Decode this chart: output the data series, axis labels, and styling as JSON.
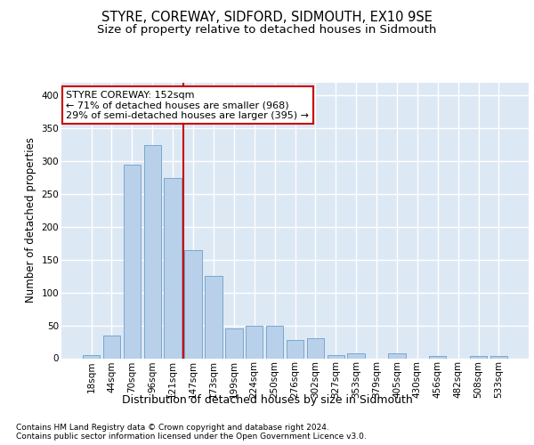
{
  "title1": "STYRE, COREWAY, SIDFORD, SIDMOUTH, EX10 9SE",
  "title2": "Size of property relative to detached houses in Sidmouth",
  "xlabel": "Distribution of detached houses by size in Sidmouth",
  "ylabel": "Number of detached properties",
  "categories": [
    "18sqm",
    "44sqm",
    "70sqm",
    "96sqm",
    "121sqm",
    "147sqm",
    "173sqm",
    "199sqm",
    "224sqm",
    "250sqm",
    "276sqm",
    "302sqm",
    "327sqm",
    "353sqm",
    "379sqm",
    "405sqm",
    "430sqm",
    "456sqm",
    "482sqm",
    "508sqm",
    "533sqm"
  ],
  "values": [
    5,
    35,
    295,
    325,
    275,
    165,
    125,
    45,
    50,
    50,
    28,
    30,
    5,
    8,
    0,
    8,
    0,
    3,
    0,
    3,
    3
  ],
  "bar_color": "#b8d0ea",
  "bar_edge_color": "#7aa8cc",
  "background_color": "#dde8f5",
  "grid_color": "#ffffff",
  "vline_x": 4.5,
  "vline_color": "#cc0000",
  "annotation_line1": "STYRE COREWAY: 152sqm",
  "annotation_line2": "← 71% of detached houses are smaller (968)",
  "annotation_line3": "29% of semi-detached houses are larger (395) →",
  "annotation_box_color": "#ffffff",
  "annotation_box_edge_color": "#cc0000",
  "footnote": "Contains HM Land Registry data © Crown copyright and database right 2024.\nContains public sector information licensed under the Open Government Licence v3.0.",
  "ylim": [
    0,
    420
  ],
  "yticks": [
    0,
    50,
    100,
    150,
    200,
    250,
    300,
    350,
    400
  ],
  "title1_fontsize": 10.5,
  "title2_fontsize": 9.5,
  "xlabel_fontsize": 9,
  "ylabel_fontsize": 8.5,
  "tick_fontsize": 7.5,
  "annotation_fontsize": 8,
  "footnote_fontsize": 6.5
}
